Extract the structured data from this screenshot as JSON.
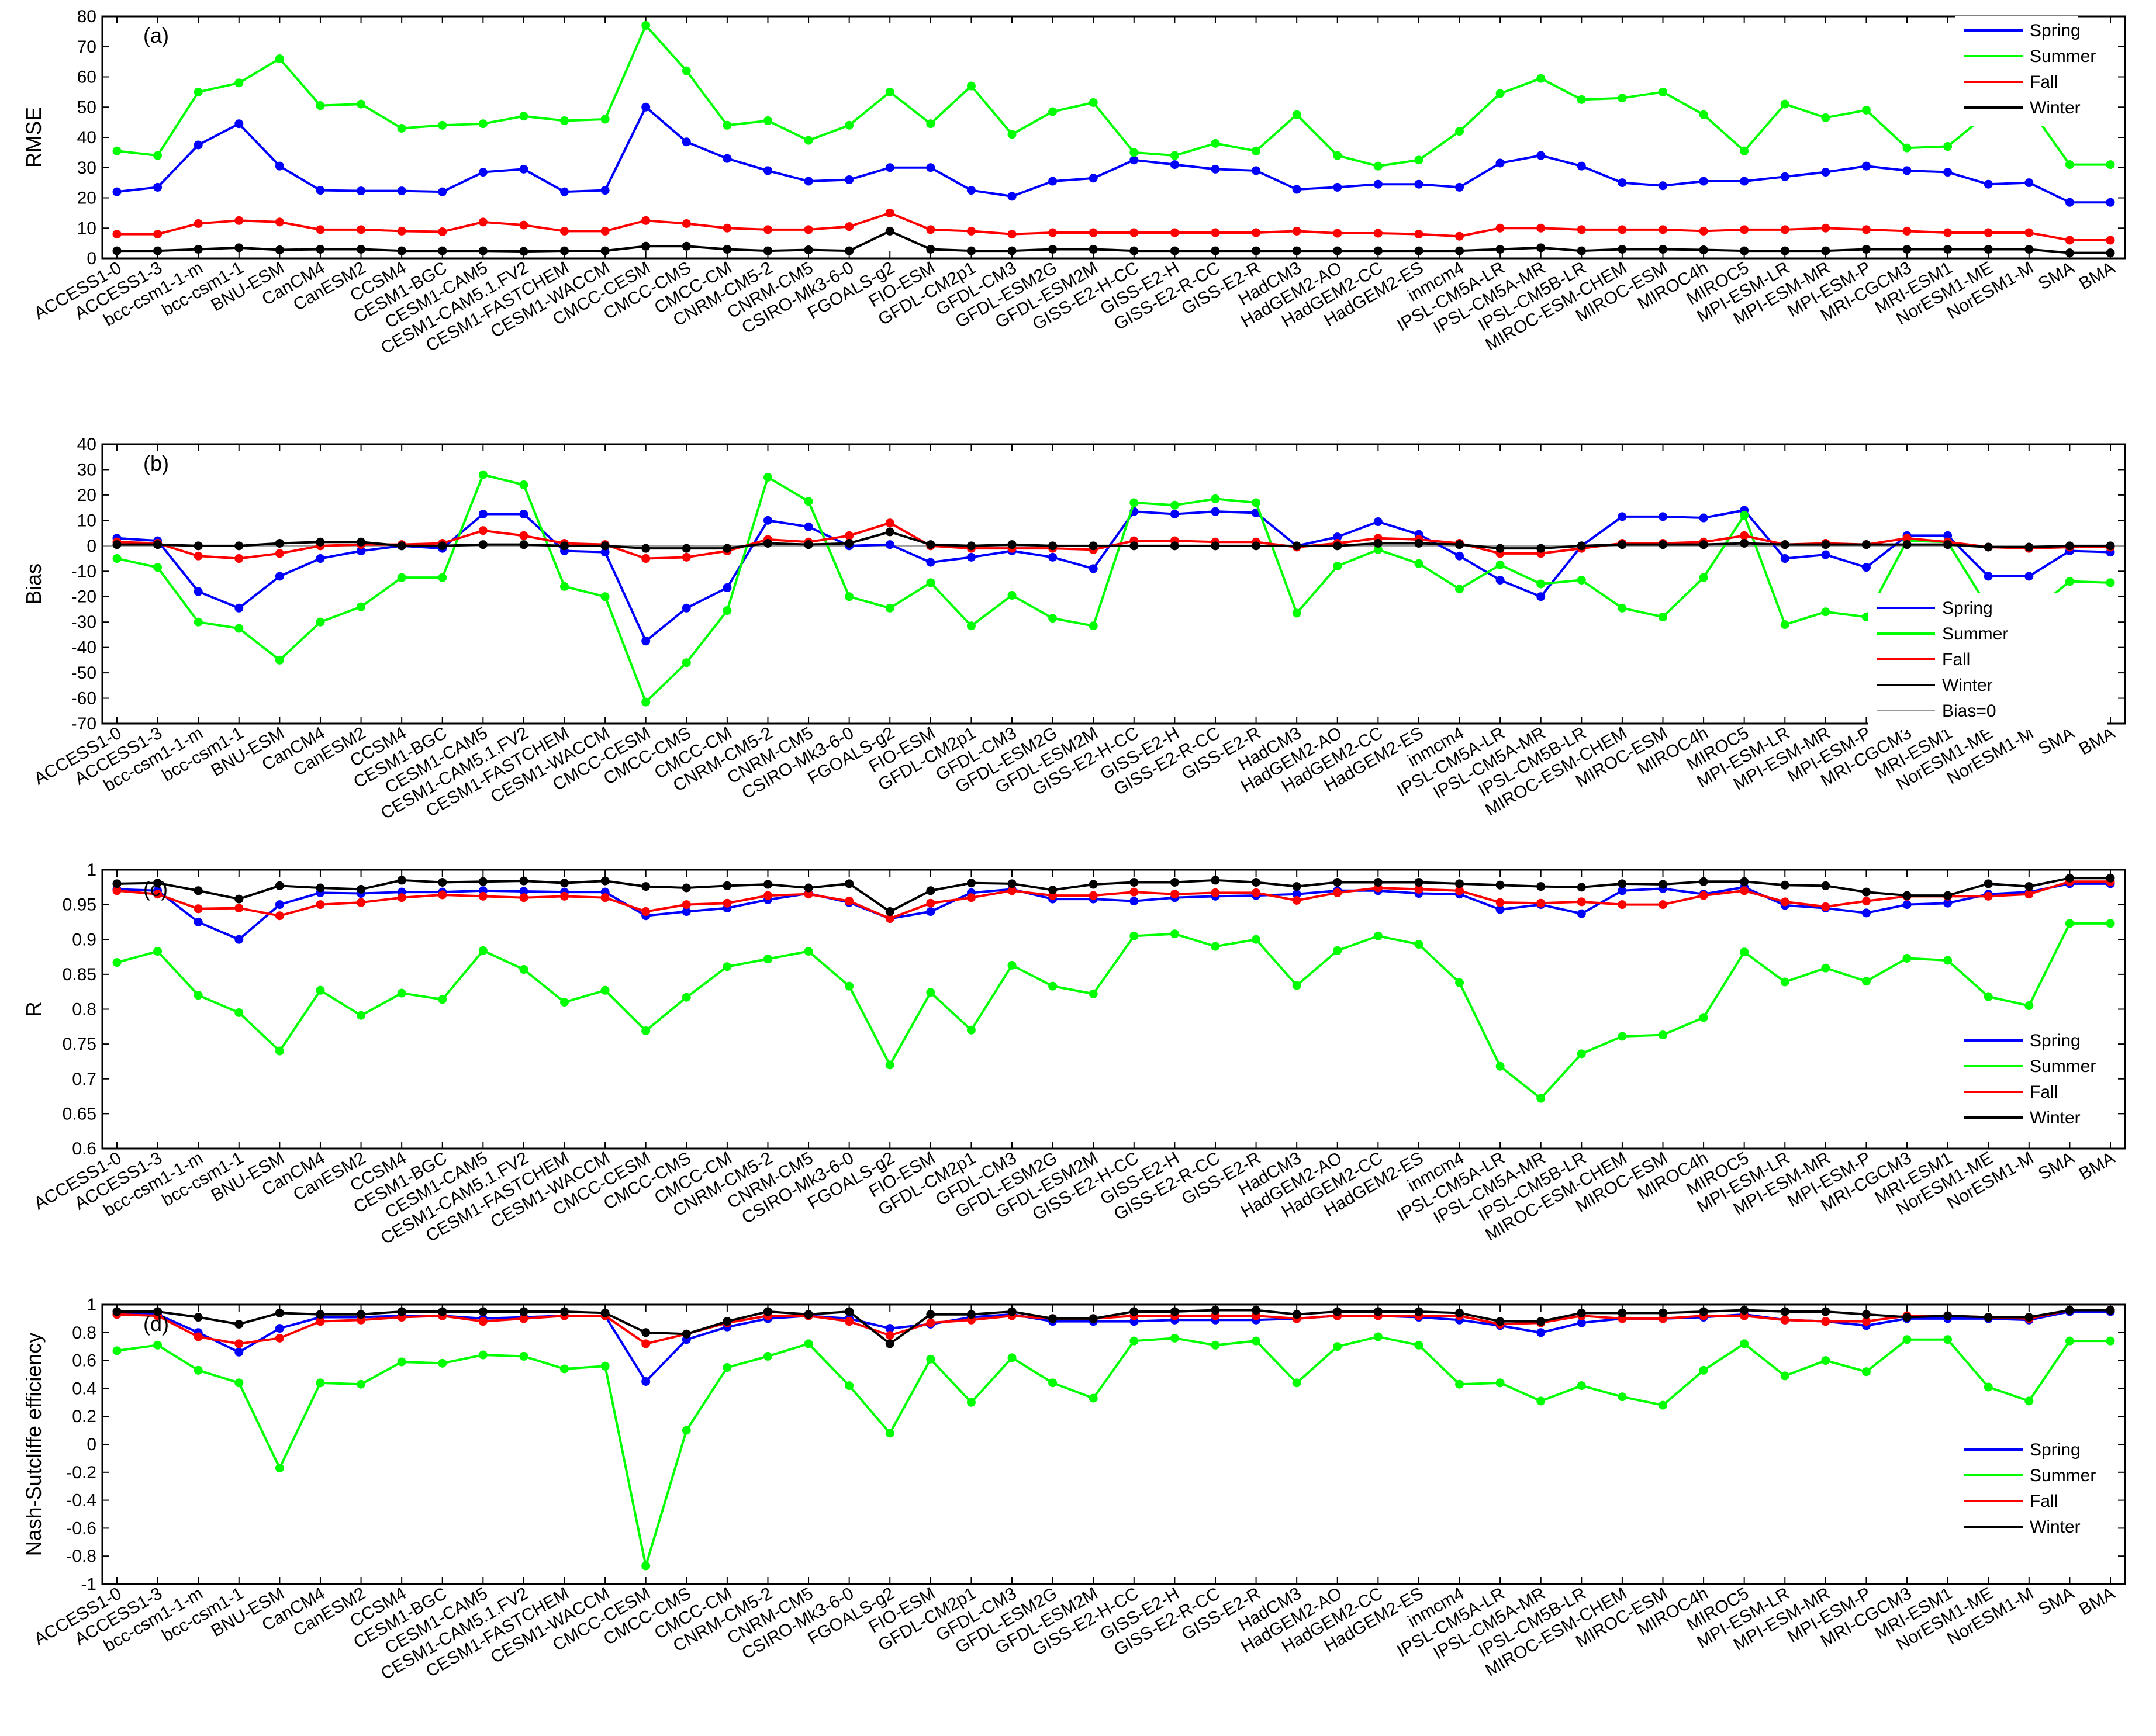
{
  "models": [
    "ACCESS1-0",
    "ACCESS1-3",
    "bcc-csm1-1-m",
    "bcc-csm1-1",
    "BNU-ESM",
    "CanCM4",
    "CanESM2",
    "CCSM4",
    "CESM1-BGC",
    "CESM1-CAM5",
    "CESM1-CAM5.1.FV2",
    "CESM1-FASTCHEM",
    "CESM1-WACCM",
    "CMCC-CESM",
    "CMCC-CMS",
    "CMCC-CM",
    "CNRM-CM5-2",
    "CNRM-CM5",
    "CSIRO-Mk3-6-0",
    "FGOALS-g2",
    "FIO-ESM",
    "GFDL-CM2p1",
    "GFDL-CM3",
    "GFDL-ESM2G",
    "GFDL-ESM2M",
    "GISS-E2-H-CC",
    "GISS-E2-H",
    "GISS-E2-R-CC",
    "GISS-E2-R",
    "HadCM3",
    "HadGEM2-AO",
    "HadGEM2-CC",
    "HadGEM2-ES",
    "inmcm4",
    "IPSL-CM5A-LR",
    "IPSL-CM5A-MR",
    "IPSL-CM5B-LR",
    "MIROC-ESM-CHEM",
    "MIROC-ESM",
    "MIROC4h",
    "MIROC5",
    "MPI-ESM-LR",
    "MPI-ESM-MR",
    "MPI-ESM-P",
    "MRI-CGCM3",
    "MRI-ESM1",
    "NorESM1-ME",
    "NorESM1-M",
    "SMA",
    "BMA"
  ],
  "colors": {
    "spring": "#0000ff",
    "summer": "#00ff00",
    "fall": "#ff0000",
    "winter": "#000000",
    "ref": "#9a9a9a"
  },
  "chart_data": [
    {
      "type": "line",
      "panel_label": "(a)",
      "ylabel": "RMSE",
      "ylim": [
        0,
        80
      ],
      "yticks": [
        0,
        10,
        20,
        30,
        40,
        50,
        60,
        70,
        80
      ],
      "legend_position": "top-right",
      "series": [
        {
          "name": "Spring",
          "key": "spring",
          "values": [
            22,
            23.5,
            37.5,
            44.5,
            30.5,
            22.5,
            22.3,
            22.3,
            22,
            28.5,
            29.5,
            22,
            22.5,
            50,
            38.5,
            33,
            29,
            25.5,
            26,
            30,
            30,
            22.5,
            20.5,
            25.5,
            26.5,
            32.5,
            31,
            29.5,
            29,
            22.8,
            23.5,
            24.5,
            24.5,
            23.5,
            31.5,
            34,
            30.5,
            25,
            24,
            25.5,
            25.5,
            27,
            28.5,
            30.5,
            29,
            28.5,
            24.5,
            25,
            18.5,
            18.5
          ]
        },
        {
          "name": "Summer",
          "key": "summer",
          "values": [
            35.5,
            34,
            55,
            58,
            66,
            50.5,
            51,
            43,
            44,
            44.5,
            47,
            45.5,
            46,
            77,
            62,
            44,
            45.5,
            39,
            44,
            55,
            44.5,
            57,
            41,
            48.5,
            51.5,
            35,
            34,
            38,
            35.5,
            47.5,
            34,
            30.5,
            32.5,
            42,
            54.5,
            59.5,
            52.5,
            53,
            55,
            47.5,
            35.5,
            51,
            46.5,
            49,
            36.5,
            37,
            48,
            50,
            31,
            31
          ]
        },
        {
          "name": "Fall",
          "key": "fall",
          "values": [
            8,
            8,
            11.5,
            12.5,
            12,
            9.5,
            9.5,
            9,
            8.8,
            12,
            11,
            9,
            9,
            12.5,
            11.5,
            10,
            9.5,
            9.5,
            10.5,
            15,
            9.5,
            9,
            8,
            8.5,
            8.5,
            8.5,
            8.5,
            8.5,
            8.5,
            9,
            8.3,
            8.3,
            8,
            7.3,
            10,
            10,
            9.5,
            9.5,
            9.5,
            9,
            9.5,
            9.5,
            10,
            9.5,
            9,
            8.5,
            8.5,
            8.5,
            6,
            6
          ]
        },
        {
          "name": "Winter",
          "key": "winter",
          "values": [
            2.5,
            2.5,
            3,
            3.5,
            2.8,
            3,
            3,
            2.5,
            2.5,
            2.5,
            2.3,
            2.5,
            2.5,
            4,
            4,
            3,
            2.5,
            2.8,
            2.5,
            9,
            3,
            2.5,
            2.5,
            3,
            3,
            2.5,
            2.5,
            2.5,
            2.5,
            2.5,
            2.5,
            2.5,
            2.5,
            2.5,
            3,
            3.5,
            2.5,
            3,
            3,
            2.8,
            2.5,
            2.5,
            2.5,
            3,
            3,
            3,
            3,
            3,
            1.8,
            1.8
          ]
        }
      ]
    },
    {
      "type": "line",
      "panel_label": "(b)",
      "ylabel": "Bias",
      "ylim": [
        -70,
        40
      ],
      "yticks": [
        -70,
        -60,
        -50,
        -40,
        -30,
        -20,
        -10,
        0,
        10,
        20,
        30,
        40
      ],
      "reference_line": {
        "name": "Bias=0",
        "value": 0
      },
      "legend_position": "lower-right",
      "series": [
        {
          "name": "Spring",
          "key": "spring",
          "values": [
            3,
            2,
            -18,
            -24.5,
            -12,
            -5,
            -2,
            0,
            -1,
            12.5,
            12.5,
            -2,
            -2.5,
            -37.5,
            -24.5,
            -16.5,
            10,
            7.5,
            0,
            0.5,
            -6.5,
            -4.5,
            -2,
            -4.5,
            -9,
            13.5,
            12.5,
            13.5,
            13,
            0,
            3.5,
            9.5,
            4.5,
            -4,
            -13.5,
            -20,
            0,
            11.5,
            11.5,
            11,
            14,
            -5,
            -3.5,
            -8.5,
            4,
            4,
            -12,
            -12,
            -2,
            -2.5
          ]
        },
        {
          "name": "Summer",
          "key": "summer",
          "values": [
            -5,
            -8.5,
            -30,
            -32.5,
            -45,
            -30,
            -24,
            -12.5,
            -12.5,
            28,
            24,
            -16,
            -20,
            -61.5,
            -46,
            -25.5,
            27,
            17.5,
            -20,
            -24.5,
            -14.5,
            -31.5,
            -19.5,
            -28.5,
            -31.5,
            17,
            16,
            18.5,
            17,
            -26.5,
            -8,
            -1.5,
            -7,
            -17,
            -7.5,
            -15,
            -13.5,
            -24.5,
            -28,
            -12.5,
            12,
            -31,
            -26,
            -28,
            2,
            1.5,
            -24.5,
            -27,
            -14,
            -14.5
          ]
        },
        {
          "name": "Fall",
          "key": "fall",
          "values": [
            1.5,
            1,
            -4,
            -5,
            -3,
            0,
            0.5,
            0.5,
            1,
            6,
            4,
            1,
            0.5,
            -5,
            -4.5,
            -2,
            2.5,
            1.5,
            4,
            9,
            0,
            -1,
            -1,
            -1,
            -1.5,
            2,
            2,
            1.5,
            1.5,
            -0.5,
            1,
            3,
            2.5,
            1,
            -3,
            -3,
            -1,
            1,
            1,
            1.5,
            4,
            0.5,
            1,
            0.5,
            3,
            1.5,
            -0.5,
            -1,
            -0.5,
            -0.5
          ]
        },
        {
          "name": "Winter",
          "key": "winter",
          "values": [
            0.5,
            0.5,
            0,
            0,
            1,
            1.5,
            1.5,
            0,
            0,
            0.5,
            0.5,
            0,
            0,
            -1,
            -1,
            -1,
            1,
            0.5,
            1,
            5.5,
            0.5,
            0,
            0.5,
            0,
            0,
            0,
            0,
            0,
            0,
            0,
            0,
            1,
            1,
            0.5,
            -1,
            -1,
            0,
            0.5,
            0.5,
            0.5,
            1,
            0.5,
            0.5,
            0.5,
            0.5,
            0.5,
            -0.5,
            -0.5,
            0,
            0
          ]
        }
      ]
    },
    {
      "type": "line",
      "panel_label": "(c)",
      "ylabel": "R",
      "ylim": [
        0.6,
        1
      ],
      "yticks": [
        0.6,
        0.65,
        0.7,
        0.75,
        0.8,
        0.85,
        0.9,
        0.95,
        1
      ],
      "ytick_labels": [
        "0.6",
        "0.65",
        "0.7",
        "0.75",
        "0.8",
        "0.85",
        "0.9",
        "0.95",
        "1"
      ],
      "reference_line": {
        "value": 1
      },
      "legend_position": "lower-right",
      "series": [
        {
          "name": "Spring",
          "key": "spring",
          "values": [
            0.972,
            0.97,
            0.925,
            0.9,
            0.95,
            0.967,
            0.966,
            0.968,
            0.968,
            0.97,
            0.969,
            0.968,
            0.968,
            0.934,
            0.94,
            0.945,
            0.957,
            0.966,
            0.953,
            0.93,
            0.94,
            0.967,
            0.972,
            0.958,
            0.958,
            0.955,
            0.96,
            0.962,
            0.963,
            0.965,
            0.97,
            0.97,
            0.966,
            0.965,
            0.943,
            0.95,
            0.937,
            0.97,
            0.973,
            0.965,
            0.975,
            0.949,
            0.945,
            0.938,
            0.95,
            0.952,
            0.965,
            0.968,
            0.98,
            0.98
          ]
        },
        {
          "name": "Summer",
          "key": "summer",
          "values": [
            0.867,
            0.883,
            0.82,
            0.795,
            0.74,
            0.827,
            0.791,
            0.823,
            0.814,
            0.884,
            0.857,
            0.81,
            0.827,
            0.769,
            0.817,
            0.861,
            0.872,
            0.883,
            0.833,
            0.72,
            0.824,
            0.77,
            0.863,
            0.833,
            0.822,
            0.905,
            0.908,
            0.89,
            0.9,
            0.834,
            0.884,
            0.905,
            0.893,
            0.838,
            0.718,
            0.672,
            0.736,
            0.761,
            0.763,
            0.788,
            0.882,
            0.839,
            0.859,
            0.84,
            0.873,
            0.87,
            0.818,
            0.805,
            0.923,
            0.923
          ]
        },
        {
          "name": "Fall",
          "key": "fall",
          "values": [
            0.97,
            0.965,
            0.944,
            0.945,
            0.934,
            0.95,
            0.953,
            0.96,
            0.964,
            0.962,
            0.96,
            0.962,
            0.96,
            0.94,
            0.95,
            0.952,
            0.963,
            0.965,
            0.955,
            0.93,
            0.952,
            0.96,
            0.97,
            0.963,
            0.963,
            0.968,
            0.965,
            0.967,
            0.967,
            0.956,
            0.967,
            0.974,
            0.972,
            0.97,
            0.953,
            0.952,
            0.954,
            0.95,
            0.95,
            0.963,
            0.97,
            0.954,
            0.947,
            0.955,
            0.962,
            0.962,
            0.962,
            0.965,
            0.983,
            0.983
          ]
        },
        {
          "name": "Winter",
          "key": "winter",
          "values": [
            0.98,
            0.981,
            0.97,
            0.958,
            0.977,
            0.974,
            0.972,
            0.985,
            0.982,
            0.983,
            0.984,
            0.981,
            0.984,
            0.976,
            0.974,
            0.977,
            0.979,
            0.974,
            0.98,
            0.94,
            0.97,
            0.981,
            0.98,
            0.971,
            0.979,
            0.982,
            0.982,
            0.985,
            0.982,
            0.976,
            0.982,
            0.982,
            0.982,
            0.98,
            0.978,
            0.976,
            0.975,
            0.98,
            0.979,
            0.983,
            0.983,
            0.978,
            0.977,
            0.968,
            0.963,
            0.963,
            0.98,
            0.976,
            0.988,
            0.988
          ]
        }
      ]
    },
    {
      "type": "line",
      "panel_label": "(d)",
      "ylabel": "Nash-Sutcliffe efficiency",
      "ylim": [
        -1,
        1
      ],
      "yticks": [
        -1,
        -0.8,
        -0.6,
        -0.4,
        -0.2,
        0,
        0.2,
        0.4,
        0.6,
        0.8,
        1
      ],
      "ytick_labels": [
        "-1",
        "-0.8",
        "-0.6",
        "-0.4",
        "-0.2",
        "0",
        "0.2",
        "0.4",
        "0.6",
        "0.8",
        "1"
      ],
      "reference_line": {
        "value": 1
      },
      "legend_position": "lower-right",
      "series": [
        {
          "name": "Spring",
          "key": "spring",
          "values": [
            0.93,
            0.93,
            0.8,
            0.66,
            0.83,
            0.91,
            0.91,
            0.92,
            0.92,
            0.9,
            0.91,
            0.92,
            0.92,
            0.45,
            0.75,
            0.84,
            0.9,
            0.92,
            0.9,
            0.83,
            0.86,
            0.91,
            0.93,
            0.88,
            0.88,
            0.88,
            0.89,
            0.89,
            0.89,
            0.9,
            0.92,
            0.92,
            0.91,
            0.89,
            0.85,
            0.8,
            0.87,
            0.9,
            0.9,
            0.91,
            0.93,
            0.89,
            0.88,
            0.85,
            0.9,
            0.9,
            0.9,
            0.89,
            0.95,
            0.95
          ]
        },
        {
          "name": "Summer",
          "key": "summer",
          "values": [
            0.67,
            0.71,
            0.53,
            0.44,
            -0.17,
            0.44,
            0.43,
            0.59,
            0.58,
            0.64,
            0.63,
            0.54,
            0.56,
            -0.87,
            0.1,
            0.55,
            0.63,
            0.72,
            0.42,
            0.08,
            0.61,
            0.3,
            0.62,
            0.44,
            0.33,
            0.74,
            0.76,
            0.71,
            0.74,
            0.44,
            0.7,
            0.77,
            0.71,
            0.43,
            0.44,
            0.31,
            0.42,
            0.34,
            0.28,
            0.53,
            0.72,
            0.49,
            0.6,
            0.52,
            0.75,
            0.75,
            0.41,
            0.31,
            0.74,
            0.74
          ]
        },
        {
          "name": "Fall",
          "key": "fall",
          "values": [
            0.93,
            0.92,
            0.77,
            0.72,
            0.76,
            0.88,
            0.89,
            0.91,
            0.92,
            0.88,
            0.9,
            0.92,
            0.92,
            0.72,
            0.79,
            0.87,
            0.92,
            0.92,
            0.88,
            0.78,
            0.87,
            0.89,
            0.92,
            0.9,
            0.9,
            0.92,
            0.92,
            0.92,
            0.92,
            0.9,
            0.92,
            0.92,
            0.92,
            0.92,
            0.86,
            0.87,
            0.92,
            0.9,
            0.9,
            0.92,
            0.92,
            0.89,
            0.88,
            0.88,
            0.92,
            0.92,
            0.91,
            0.9,
            0.96,
            0.96
          ]
        },
        {
          "name": "Winter",
          "key": "winter",
          "values": [
            0.95,
            0.95,
            0.91,
            0.86,
            0.94,
            0.93,
            0.93,
            0.95,
            0.95,
            0.95,
            0.95,
            0.95,
            0.94,
            0.8,
            0.79,
            0.88,
            0.95,
            0.93,
            0.95,
            0.72,
            0.93,
            0.93,
            0.95,
            0.9,
            0.9,
            0.95,
            0.95,
            0.96,
            0.96,
            0.93,
            0.95,
            0.95,
            0.95,
            0.94,
            0.88,
            0.88,
            0.94,
            0.94,
            0.94,
            0.95,
            0.96,
            0.95,
            0.95,
            0.93,
            0.91,
            0.92,
            0.91,
            0.91,
            0.96,
            0.96
          ]
        }
      ]
    }
  ]
}
